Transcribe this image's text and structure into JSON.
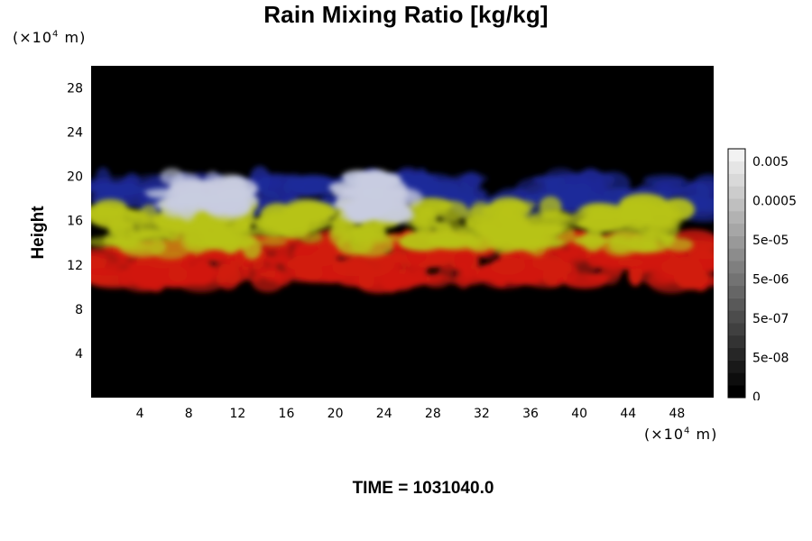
{
  "title": "Rain Mixing Ratio [kg/kg]",
  "y_unit": {
    "prefix": "(×10",
    "exp": "4",
    "suffix": " m)"
  },
  "x_unit": {
    "prefix": "(×10",
    "exp": "4",
    "suffix": " m)"
  },
  "time_label": "TIME = 1031040.0",
  "chart_data": {
    "type": "heatmap",
    "title": "Rain Mixing Ratio [kg/kg]",
    "xlabel": "",
    "ylabel": "Height",
    "x_unit": "×10^4 m",
    "y_unit": "×10^4 m",
    "xlim": [
      0,
      51
    ],
    "ylim": [
      0,
      30
    ],
    "x_ticks": [
      "4",
      "8",
      "12",
      "16",
      "20",
      "24",
      "28",
      "32",
      "36",
      "40",
      "44",
      "48"
    ],
    "y_ticks": [
      "4",
      "8",
      "12",
      "16",
      "20",
      "24",
      "28"
    ],
    "background_color": "#000000",
    "layers": [
      {
        "color": "#1e2a9a",
        "y_range": [
          16.8,
          19.8
        ],
        "description_color": "blue"
      },
      {
        "color": "#c8cce0",
        "y_range": [
          16.5,
          20.0
        ],
        "description_color": "light-lavender"
      },
      {
        "color": "#b7c318",
        "y_range": [
          13.5,
          17.5
        ],
        "description_color": "yellow-green"
      },
      {
        "color": "#d11a0c",
        "y_range": [
          10.5,
          14.5
        ],
        "description_color": "red"
      }
    ],
    "colorbar": {
      "labels": [
        "0.005",
        "0.0005",
        "5e-05",
        "5e-06",
        "5e-07",
        "5e-08",
        "0"
      ],
      "levels": 20,
      "color_low": "#000000",
      "color_high": "#f2f2f2"
    }
  }
}
